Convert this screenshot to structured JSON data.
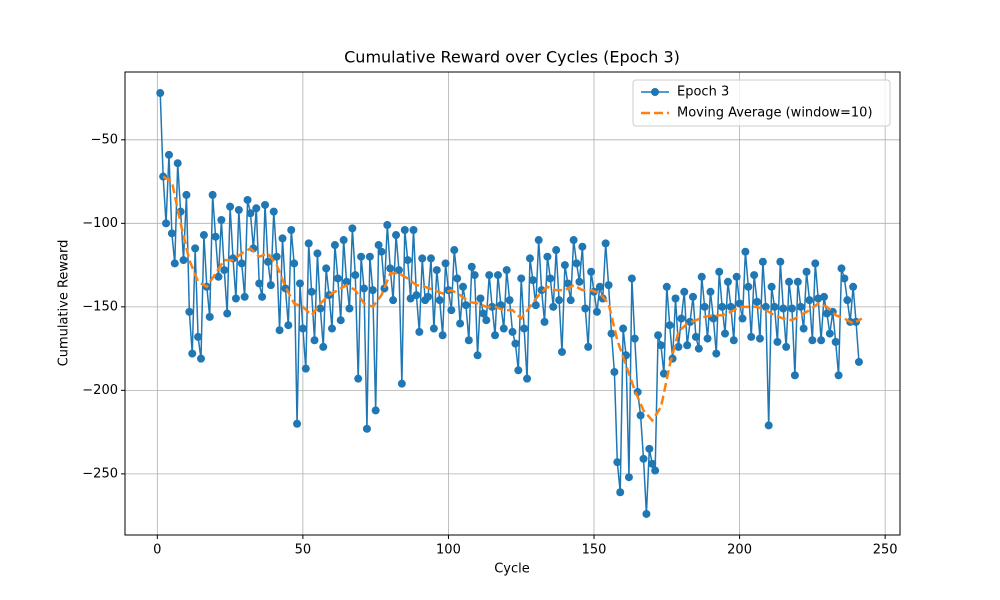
{
  "chart_data": {
    "type": "line",
    "title": "Cumulative Reward over Cycles (Epoch 3)",
    "x_label": "Cycle",
    "y_label": "Cumulative Reward",
    "xlim": [
      -11.1,
      255.1
    ],
    "ylim": [
      -286.6,
      -9.4
    ],
    "xticks": [
      0,
      50,
      100,
      150,
      200,
      250
    ],
    "yticks": [
      {
        "value": -250,
        "label": "−250"
      },
      {
        "value": -200,
        "label": "−200"
      },
      {
        "value": -150,
        "label": "−150"
      },
      {
        "value": -100,
        "label": "−100"
      },
      {
        "value": -50,
        "label": "−50"
      }
    ],
    "grid": true,
    "legend": "upper right",
    "x": [
      1,
      2,
      3,
      4,
      5,
      6,
      7,
      8,
      9,
      10,
      11,
      12,
      13,
      14,
      15,
      16,
      17,
      18,
      19,
      20,
      21,
      22,
      23,
      24,
      25,
      26,
      27,
      28,
      29,
      30,
      31,
      32,
      33,
      34,
      35,
      36,
      37,
      38,
      39,
      40,
      41,
      42,
      43,
      44,
      45,
      46,
      47,
      48,
      49,
      50,
      51,
      52,
      53,
      54,
      55,
      56,
      57,
      58,
      59,
      60,
      61,
      62,
      63,
      64,
      65,
      66,
      67,
      68,
      69,
      70,
      71,
      72,
      73,
      74,
      75,
      76,
      77,
      78,
      79,
      80,
      81,
      82,
      83,
      84,
      85,
      86,
      87,
      88,
      89,
      90,
      91,
      92,
      93,
      94,
      95,
      96,
      97,
      98,
      99,
      100,
      101,
      102,
      103,
      104,
      105,
      106,
      107,
      108,
      109,
      110,
      111,
      112,
      113,
      114,
      115,
      116,
      117,
      118,
      119,
      120,
      121,
      122,
      123,
      124,
      125,
      126,
      127,
      128,
      129,
      130,
      131,
      132,
      133,
      134,
      135,
      136,
      137,
      138,
      139,
      140,
      141,
      142,
      143,
      144,
      145,
      146,
      147,
      148,
      149,
      150,
      151,
      152,
      153,
      154,
      155,
      156,
      157,
      158,
      159,
      160,
      161,
      162,
      163,
      164,
      165,
      166,
      167,
      168,
      169,
      170,
      171,
      172,
      173,
      174,
      175,
      176,
      177,
      178,
      179,
      180,
      181,
      182,
      183,
      184,
      185,
      186,
      187,
      188,
      189,
      190,
      191,
      192,
      193,
      194,
      195,
      196,
      197,
      198,
      199,
      200,
      201,
      202,
      203,
      204,
      205,
      206,
      207,
      208,
      209,
      210,
      211,
      212,
      213,
      214,
      215,
      216,
      217,
      218,
      219,
      220,
      221,
      222,
      223,
      224,
      225,
      226,
      227,
      228,
      229,
      230,
      231,
      232,
      233,
      234,
      235,
      236,
      237,
      238,
      239,
      240,
      241
    ],
    "series": [
      {
        "name": "Epoch 3",
        "color": "#1f77b4",
        "marker": "o",
        "values": [
          -22,
          -72,
          -100,
          -59,
          -106,
          -124,
          -64,
          -93,
          -122,
          -83,
          -153,
          -178,
          -115,
          -168,
          -181,
          -107,
          -138,
          -156,
          -83,
          -108,
          -132,
          -98,
          -128,
          -154,
          -90,
          -121,
          -145,
          -92,
          -124,
          -144,
          -86,
          -94,
          -115,
          -91,
          -136,
          -144,
          -89,
          -123,
          -137,
          -93,
          -120,
          -164,
          -109,
          -139,
          -161,
          -104,
          -124,
          -220,
          -136,
          -163,
          -187,
          -112,
          -141,
          -170,
          -118,
          -151,
          -174,
          -127,
          -143,
          -163,
          -113,
          -133,
          -158,
          -110,
          -135,
          -151,
          -103,
          -131,
          -193,
          -120,
          -139,
          -223,
          -120,
          -140,
          -212,
          -113,
          -117,
          -139,
          -101,
          -127,
          -146,
          -107,
          -128,
          -196,
          -104,
          -122,
          -145,
          -104,
          -143,
          -165,
          -121,
          -146,
          -144,
          -121,
          -163,
          -128,
          -146,
          -167,
          -124,
          -140,
          -152,
          -116,
          -133,
          -160,
          -138,
          -149,
          -170,
          -126,
          -131,
          -179,
          -145,
          -154,
          -158,
          -131,
          -150,
          -167,
          -131,
          -149,
          -163,
          -128,
          -146,
          -165,
          -172,
          -188,
          -133,
          -163,
          -193,
          -121,
          -134,
          -149,
          -110,
          -140,
          -159,
          -120,
          -133,
          -150,
          -116,
          -146,
          -177,
          -125,
          -136,
          -146,
          -110,
          -124,
          -135,
          -114,
          -151,
          -174,
          -129,
          -141,
          -153,
          -138,
          -145,
          -112,
          -137,
          -166,
          -189,
          -243,
          -261,
          -163,
          -179,
          -252,
          -133,
          -169,
          -201,
          -215,
          -241,
          -274,
          -235,
          -244,
          -248,
          -167,
          -173,
          -190,
          -138,
          -161,
          -181,
          -145,
          -174,
          -157,
          -141,
          -173,
          -159,
          -144,
          -168,
          -175,
          -132,
          -150,
          -169,
          -141,
          -157,
          -178,
          -129,
          -150,
          -166,
          -135,
          -150,
          -170,
          -132,
          -148,
          -157,
          -117,
          -138,
          -168,
          -131,
          -147,
          -169,
          -123,
          -150,
          -221,
          -138,
          -150,
          -171,
          -123,
          -151,
          -174,
          -135,
          -151,
          -191,
          -135,
          -150,
          -163,
          -129,
          -146,
          -170,
          -124,
          -145,
          -170,
          -144,
          -154,
          -166,
          -153,
          -171,
          -191,
          -127,
          -133,
          -146,
          -159,
          -138,
          -159,
          -183
        ]
      },
      {
        "name": "Moving Average (window=10)",
        "color": "#ff7f0e",
        "dashed": true,
        "x": [
          2,
          5,
          8,
          11,
          14,
          17,
          20,
          23,
          26,
          29,
          32,
          35,
          38,
          41,
          44,
          47,
          50,
          53,
          56,
          59,
          62,
          65,
          68,
          71,
          74,
          77,
          80,
          83,
          86,
          89,
          92,
          95,
          98,
          101,
          104,
          107,
          110,
          113,
          116,
          119,
          122,
          125,
          128,
          131,
          134,
          137,
          140,
          143,
          146,
          149,
          152,
          155,
          158,
          161,
          164,
          167,
          170,
          173,
          176,
          179,
          182,
          185,
          188,
          191,
          194,
          197,
          200,
          203,
          206,
          209,
          212,
          215,
          218,
          221,
          224,
          227,
          230,
          233,
          236,
          239,
          242
        ],
        "values": [
          -72,
          -75,
          -100,
          -122,
          -135,
          -138,
          -130,
          -122,
          -122,
          -118,
          -115,
          -120,
          -118,
          -125,
          -138,
          -148,
          -150,
          -155,
          -148,
          -143,
          -140,
          -137,
          -140,
          -148,
          -150,
          -143,
          -130,
          -130,
          -133,
          -137,
          -138,
          -140,
          -142,
          -140,
          -143,
          -147,
          -148,
          -150,
          -150,
          -152,
          -152,
          -157,
          -150,
          -143,
          -138,
          -140,
          -140,
          -137,
          -140,
          -140,
          -142,
          -148,
          -170,
          -185,
          -200,
          -212,
          -218,
          -210,
          -185,
          -165,
          -160,
          -158,
          -156,
          -155,
          -155,
          -153,
          -150,
          -150,
          -150,
          -152,
          -155,
          -157,
          -158,
          -155,
          -152,
          -148,
          -150,
          -155,
          -157,
          -160,
          -157
        ]
      }
    ]
  }
}
